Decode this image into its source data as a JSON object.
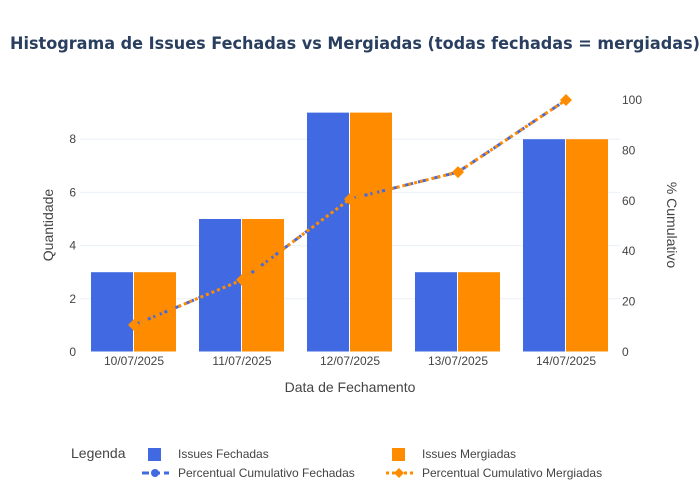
{
  "chart_data": {
    "type": "bar",
    "title": "Histograma de Issues Fechadas vs Mergiadas (todas fechadas = mergiadas)",
    "xlabel": "Data de Fechamento",
    "ylabel": "Quantidade",
    "y2label": "% Cumulativo",
    "categories": [
      "10/07/2025",
      "11/07/2025",
      "12/07/2025",
      "13/07/2025",
      "14/07/2025"
    ],
    "ylim": [
      0,
      9.474
    ],
    "y2lim": [
      0,
      100
    ],
    "yticks": [
      0,
      2,
      4,
      6,
      8
    ],
    "y2ticks": [
      0,
      20,
      40,
      60,
      80,
      100
    ],
    "grid": true,
    "legend_title": "Legenda",
    "legend_position": "bottom",
    "series": [
      {
        "name": "Issues Fechadas",
        "type": "bar",
        "axis": "y",
        "color": "#4169e1",
        "values": [
          3,
          5,
          9,
          3,
          8
        ]
      },
      {
        "name": "Issues Mergiadas",
        "type": "bar",
        "axis": "y",
        "color": "#ff8c00",
        "values": [
          3,
          5,
          9,
          3,
          8
        ]
      },
      {
        "name": "Percentual Cumulativo Fechadas",
        "type": "line",
        "axis": "y2",
        "color": "#4169e1",
        "dash": "dash",
        "marker": "circle",
        "values": [
          10.7,
          28.6,
          60.7,
          71.4,
          100
        ]
      },
      {
        "name": "Percentual Cumulativo Mergiadas",
        "type": "line",
        "axis": "y2",
        "color": "#ff8c00",
        "dash": "dot",
        "marker": "diamond",
        "values": [
          10.7,
          28.6,
          60.7,
          71.4,
          100
        ]
      }
    ]
  }
}
